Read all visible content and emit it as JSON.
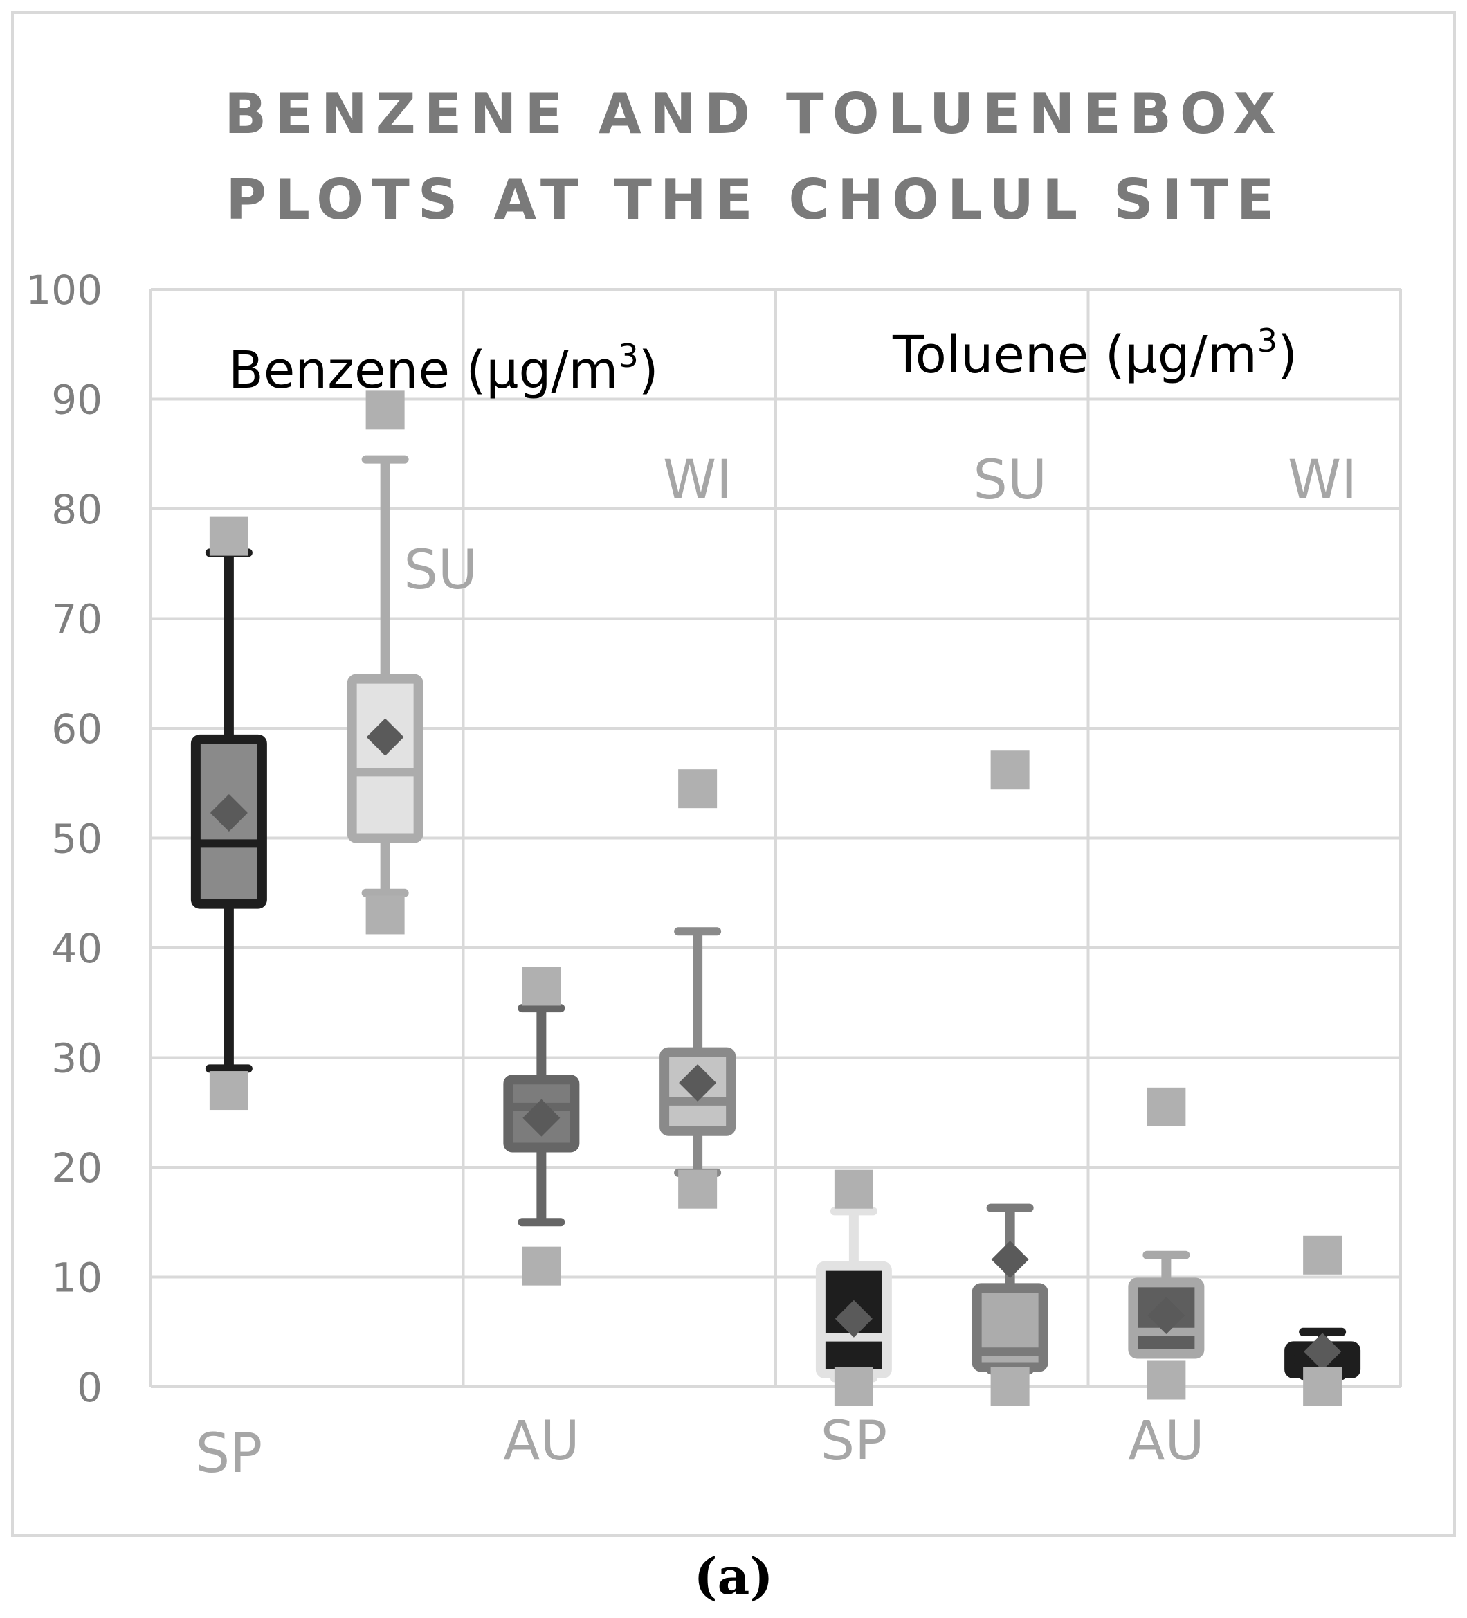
{
  "chart_data": {
    "type": "box",
    "title": "BENZENE AND TOLUENEBOX PLOTS AT THE CHOLUL SITE",
    "title_lines": [
      "BENZENE AND TOLUENEBOX",
      "PLOTS AT THE CHOLUL SITE"
    ],
    "caption": "(a)",
    "ylim": [
      0,
      100
    ],
    "yticks": [
      0,
      10,
      20,
      30,
      40,
      50,
      60,
      70,
      80,
      90,
      100
    ],
    "grid": true,
    "groups": [
      {
        "label": "Benzene (µg/m³)",
        "label_main": "Benzene (µg/m",
        "label_sup": "3",
        "label_end": ")"
      },
      {
        "label": "Toluene (µg/m³)",
        "label_main": "Toluene (µg/m",
        "label_sup": "3",
        "label_end": ")"
      }
    ],
    "boxes": [
      {
        "group": "Benzene",
        "season": "SP",
        "max": 77.5,
        "whisker_high": 76,
        "q3": 59,
        "median": 49.5,
        "mean": 52.3,
        "q1": 44,
        "whisker_low": 29,
        "min": 27,
        "color": "#8a8a8a",
        "edge": "#1e1e1e"
      },
      {
        "group": "Benzene",
        "season": "SU",
        "max": 89,
        "whisker_high": 84.5,
        "q3": 64.5,
        "median": 56,
        "mean": 59.2,
        "q1": 50,
        "whisker_low": 45,
        "min": 43,
        "color": "#e2e2e2",
        "edge": "#acacac"
      },
      {
        "group": "Benzene",
        "season": "AU",
        "max": 36.5,
        "whisker_high": 34.5,
        "q3": 28,
        "median": 25.5,
        "mean": 24.5,
        "q1": 21.8,
        "whisker_low": 15,
        "min": 11,
        "color": "#7c7c7c",
        "edge": "#666666"
      },
      {
        "group": "Benzene",
        "season": "WI",
        "max": 54.5,
        "whisker_high": 41.5,
        "q3": 30.5,
        "median": 26,
        "mean": 27.7,
        "q1": 23.3,
        "whisker_low": 19.5,
        "min": 18,
        "color": "#c4c4c4",
        "edge": "#8a8a8a"
      },
      {
        "group": "Toluene",
        "season": "SP",
        "max": 18,
        "whisker_high": 16,
        "q3": 11,
        "median": 4.5,
        "mean": 6.2,
        "q1": 1.2,
        "whisker_low": 0.8,
        "min": 0,
        "color": "#1e1e1e",
        "edge": "#e2e2e2"
      },
      {
        "group": "Toluene",
        "season": "SU",
        "max": 56.2,
        "whisker_high": 16.3,
        "q3": 9,
        "median": 3.2,
        "mean": 11.6,
        "q1": 1.8,
        "whisker_low": 1.5,
        "min": 0,
        "color": "#acacac",
        "edge": "#7a7a7a"
      },
      {
        "group": "Toluene",
        "season": "AU",
        "max": 25.5,
        "whisker_high": 12,
        "q3": 9.5,
        "median": 5,
        "mean": 6.5,
        "q1": 3,
        "whisker_low": 3,
        "min": 0.6,
        "color": "#5e5e5e",
        "edge": "#a8a8a8"
      },
      {
        "group": "Toluene",
        "season": "WI",
        "max": 12,
        "whisker_high": 5,
        "q3": 3.7,
        "median": 2.5,
        "mean": 3.2,
        "q1": 1.2,
        "whisker_low": 1,
        "min": 0,
        "color": "#1e1e1e",
        "edge": "#1e1e1e"
      }
    ],
    "mean_marker_color": "#5a5a5a",
    "extreme_marker_color": "#b0b0b0",
    "season_label_color": "#a6a6a6"
  }
}
